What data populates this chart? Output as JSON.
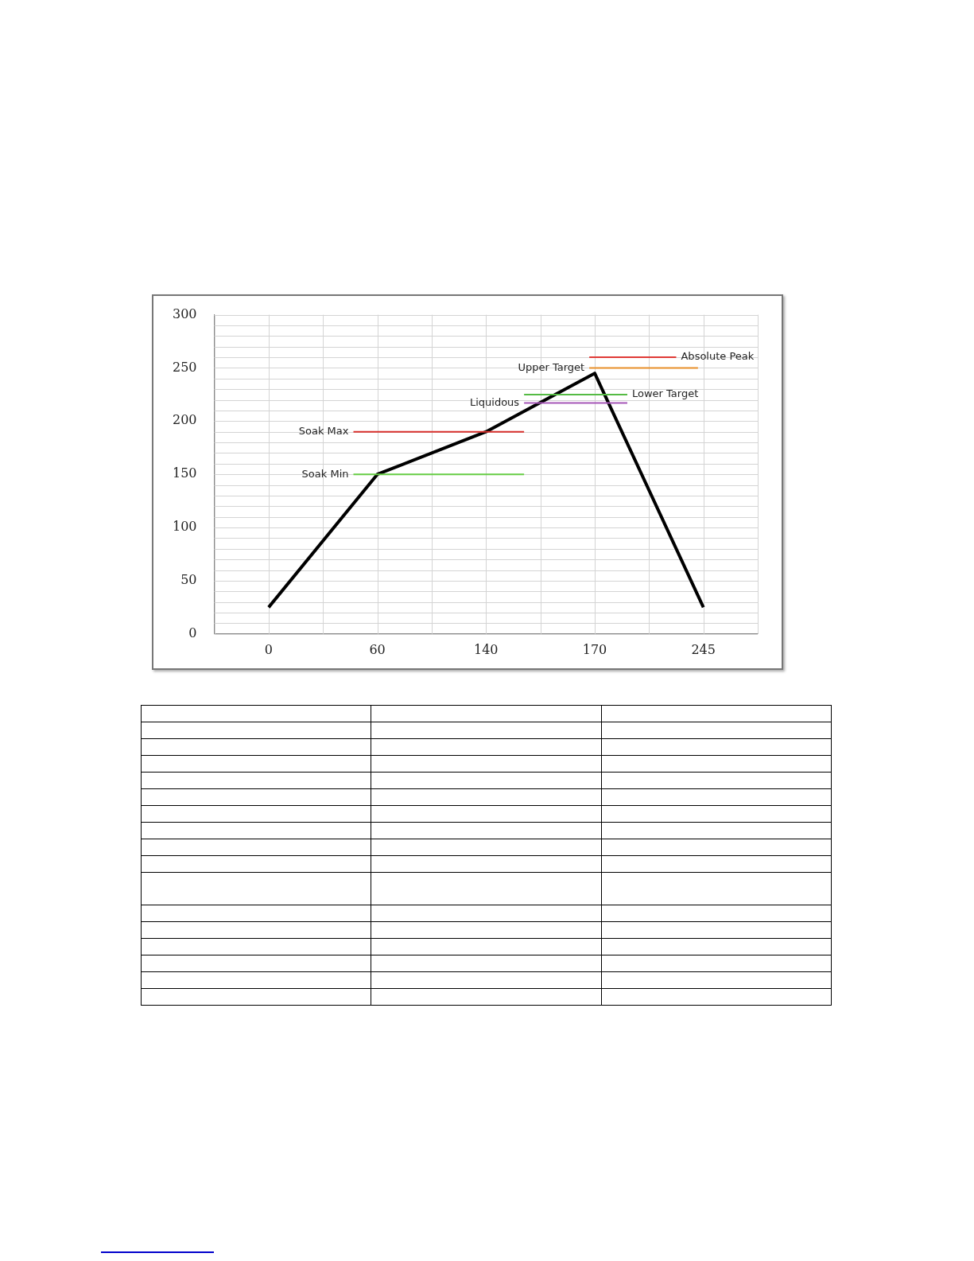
{
  "chart_data": {
    "type": "line",
    "categories": [
      "0",
      "60",
      "140",
      "170",
      "245"
    ],
    "series": [
      {
        "color": "#000000",
        "values": [
          25,
          150,
          190,
          245,
          25
        ]
      }
    ],
    "ylim": [
      0,
      300
    ],
    "yticks": [
      0,
      50,
      100,
      150,
      200,
      250,
      300
    ],
    "grid": true,
    "legend": false,
    "marker": "none",
    "line_style": "solid",
    "ref_lines": [
      {
        "axis": "y",
        "value": 190,
        "label": "Soak Max",
        "color": "#d9302c"
      },
      {
        "axis": "y",
        "value": 150,
        "label": "Soak Min",
        "color": "#66cc44"
      },
      {
        "axis": "y",
        "value": 217,
        "label": "Liquidous",
        "color": "#a656b8"
      },
      {
        "axis": "y",
        "value": 225,
        "label": "Lower Target",
        "color": "#55bb44"
      },
      {
        "axis": "y",
        "value": 250,
        "label": "Upper Target",
        "color": "#e8902a"
      },
      {
        "axis": "y",
        "value": 260,
        "label": "Absolute Peak",
        "color": "#e03a36"
      }
    ]
  }
}
